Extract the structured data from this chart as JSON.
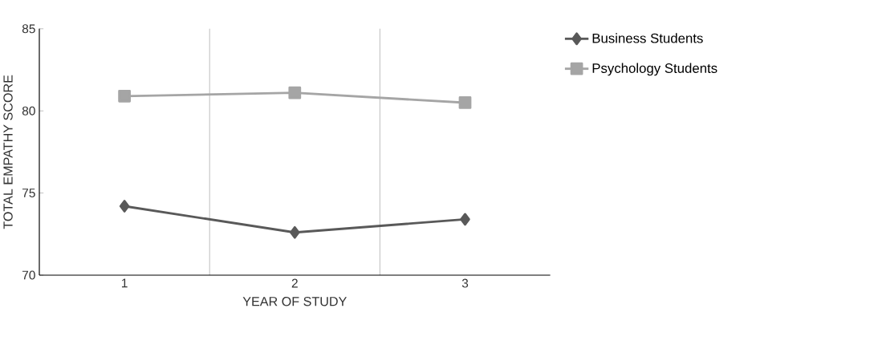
{
  "chart_data": {
    "type": "line",
    "xlabel": "YEAR OF STUDY",
    "ylabel": "TOTAL EMPATHY SCORE",
    "categories": [
      "1",
      "2",
      "3"
    ],
    "series": [
      {
        "name": "Business Students",
        "color": "#595959",
        "marker": "diamond",
        "values": [
          74.2,
          72.6,
          73.4
        ]
      },
      {
        "name": "Psychology Students",
        "color": "#a5a5a5",
        "marker": "square",
        "values": [
          80.9,
          81.1,
          80.5
        ]
      }
    ],
    "ylim": [
      70,
      85
    ],
    "yticks": [
      70,
      75,
      80,
      85
    ],
    "grid": "x",
    "legend": "right"
  }
}
